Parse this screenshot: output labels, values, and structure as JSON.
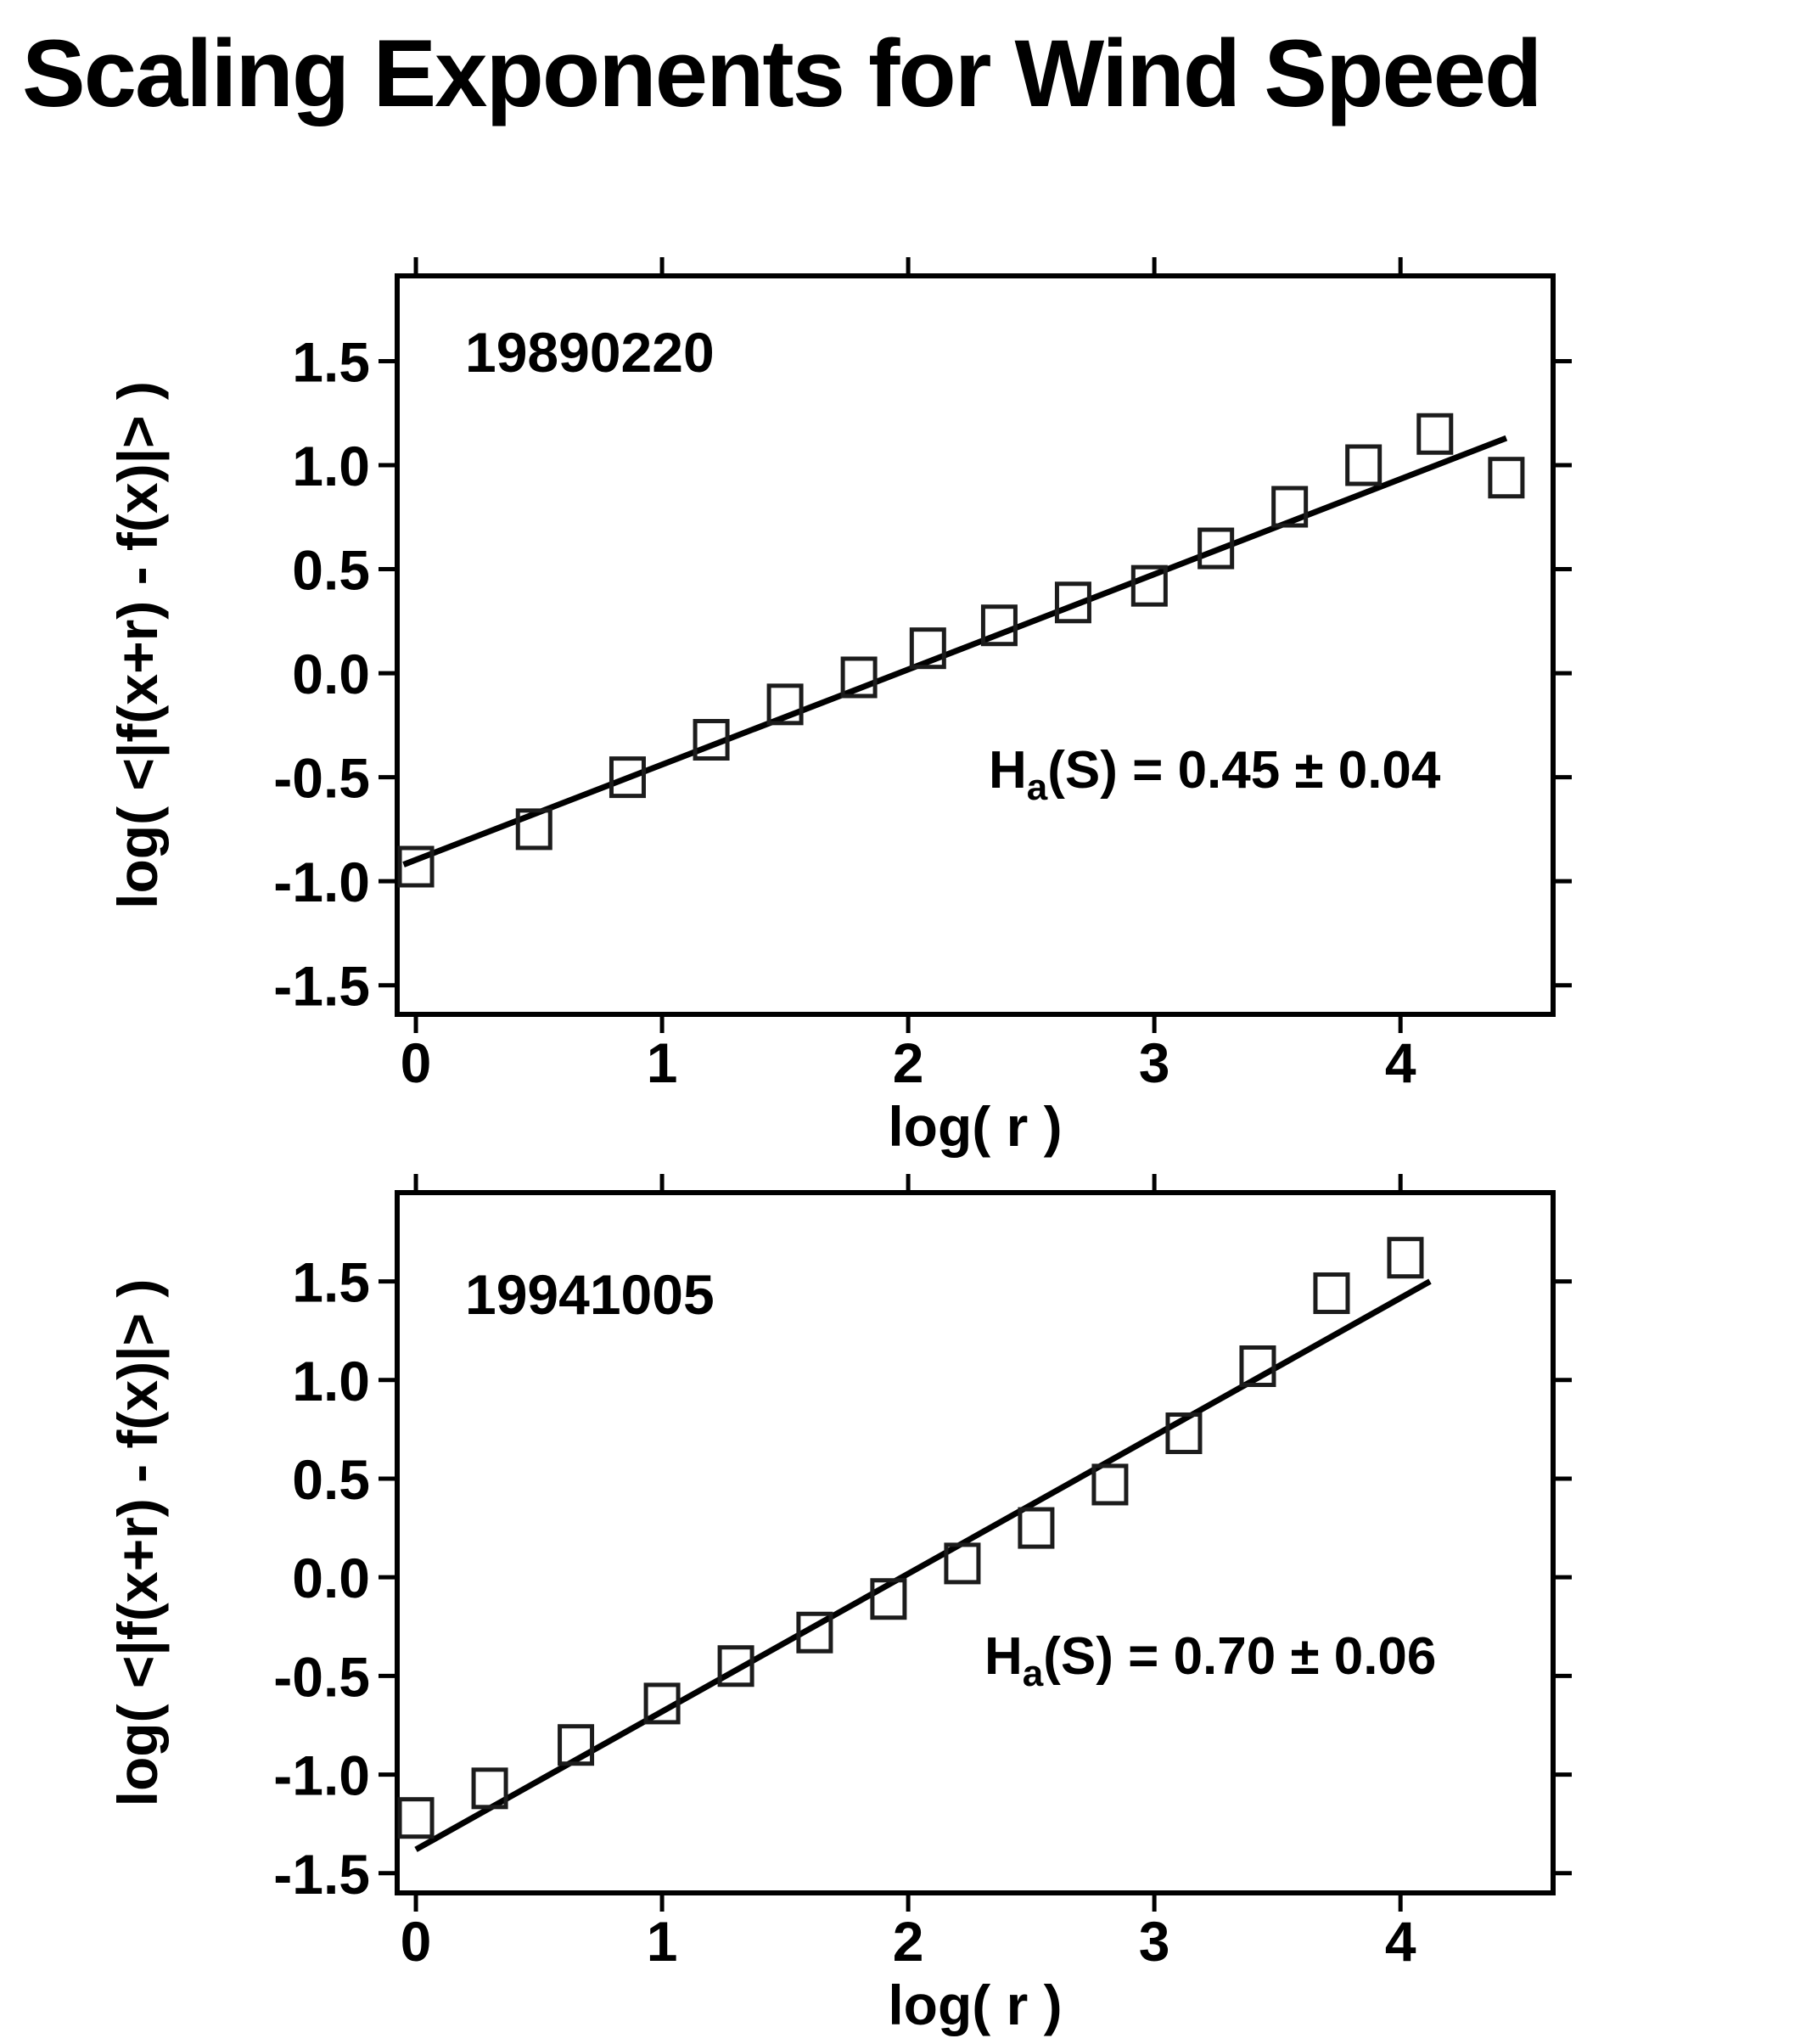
{
  "page": {
    "title": "Scaling Exponents for Wind Speed",
    "background": "#ffffff",
    "ink": "#000000"
  },
  "chart_data": [
    {
      "type": "scatter",
      "dataset_label": "19890220",
      "xlabel": "log( r )",
      "ylabel": "log( <|f(x+r) - f(x)|> )",
      "annotation": {
        "base": "H",
        "sub": "a",
        "rest": "(S) = 0.45 ± 0.04"
      },
      "legend": "none",
      "grid": false,
      "marker": "open-square",
      "xlim": [
        -0.076,
        4.62
      ],
      "ylim": [
        -1.64,
        1.91
      ],
      "xticks": [
        0,
        1,
        2,
        3,
        4
      ],
      "xtick_labels": [
        "0",
        "1",
        "2",
        "3",
        "4"
      ],
      "yticks": [
        1.5,
        1.0,
        0.5,
        0.0,
        -0.5,
        -1.0,
        -1.5
      ],
      "ytick_labels": [
        "1.5",
        "1.0",
        "0.5",
        "0.0",
        "-0.5",
        "-1.0",
        "-1.5"
      ],
      "points_x": [
        0.0,
        0.48,
        0.86,
        1.2,
        1.5,
        1.8,
        2.08,
        2.37,
        2.67,
        2.98,
        3.25,
        3.55,
        3.85,
        4.14,
        4.43
      ],
      "points_y": [
        -0.93,
        -0.75,
        -0.5,
        -0.32,
        -0.15,
        -0.02,
        0.12,
        0.23,
        0.34,
        0.42,
        0.6,
        0.8,
        1.0,
        1.15,
        0.94
      ],
      "fit_line": {
        "x1": -0.05,
        "y1": -0.92,
        "x2": 4.43,
        "y2": 1.13,
        "slope": 0.45,
        "slope_err": 0.04
      }
    },
    {
      "type": "scatter",
      "dataset_label": "19941005",
      "xlabel": "log( r )",
      "ylabel": "log( <|f(x+r) - f(x)|> )",
      "annotation": {
        "base": "H",
        "sub": "a",
        "rest": "(S) = 0.70 ± 0.06"
      },
      "legend": "none",
      "grid": false,
      "marker": "open-square",
      "xlim": [
        -0.076,
        4.62
      ],
      "ylim": [
        -1.6,
        1.95
      ],
      "xticks": [
        0,
        1,
        2,
        3,
        4
      ],
      "xtick_labels": [
        "0",
        "1",
        "2",
        "3",
        "4"
      ],
      "yticks": [
        1.5,
        1.0,
        0.5,
        0.0,
        -0.5,
        -1.0,
        -1.5
      ],
      "ytick_labels": [
        "1.5",
        "1.0",
        "0.5",
        "0.0",
        "-0.5",
        "-1.0",
        "-1.5"
      ],
      "points_x": [
        0.0,
        0.3,
        0.65,
        1.0,
        1.3,
        1.62,
        1.92,
        2.22,
        2.52,
        2.82,
        3.12,
        3.42,
        3.72,
        4.02
      ],
      "points_y": [
        -1.22,
        -1.07,
        -0.85,
        -0.64,
        -0.45,
        -0.28,
        -0.11,
        0.07,
        0.25,
        0.47,
        0.73,
        1.07,
        1.44,
        1.62
      ],
      "fit_line": {
        "x1": 0.0,
        "y1": -1.38,
        "x2": 4.12,
        "y2": 1.5,
        "slope": 0.7,
        "slope_err": 0.06
      }
    }
  ]
}
